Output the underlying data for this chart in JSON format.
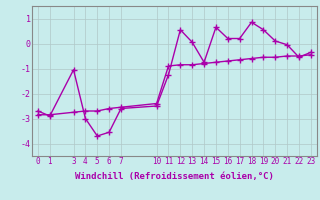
{
  "title": "",
  "xlabel": "Windchill (Refroidissement éolien,°C)",
  "ylabel": "",
  "background_color": "#c8ecec",
  "plot_bg_color": "#c8ecec",
  "line_color": "#aa00aa",
  "marker": "+",
  "linewidth": 1.0,
  "markersize": 4,
  "markeredgewidth": 1.0,
  "xlim": [
    -0.5,
    23.5
  ],
  "ylim": [
    -4.5,
    1.5
  ],
  "yticks": [
    -4,
    -3,
    -2,
    -1,
    0,
    1
  ],
  "xticks": [
    0,
    1,
    3,
    4,
    5,
    6,
    7,
    10,
    11,
    12,
    13,
    14,
    15,
    16,
    17,
    18,
    19,
    20,
    21,
    22,
    23
  ],
  "xtick_labels": [
    "0",
    "1",
    "3",
    "4",
    "5",
    "6",
    "7",
    "10",
    "11",
    "12",
    "13",
    "14",
    "15",
    "16",
    "17",
    "18",
    "19",
    "20",
    "21",
    "22",
    "23"
  ],
  "ytick_labels": [
    "-4",
    "-3",
    "-2",
    "-1",
    "0",
    "1"
  ],
  "grid_color": "#b0c8c8",
  "x_zigzag": [
    0,
    1,
    3,
    4,
    5,
    6,
    7,
    10,
    11,
    12,
    13,
    14,
    15,
    16,
    17,
    18,
    19,
    20,
    21,
    22,
    23
  ],
  "y_zigzag": [
    -2.7,
    -2.9,
    -1.05,
    -3.0,
    -3.7,
    -3.55,
    -2.6,
    -2.5,
    -1.25,
    0.55,
    0.05,
    -0.75,
    0.65,
    0.2,
    0.2,
    0.85,
    0.55,
    0.1,
    -0.05,
    -0.55,
    -0.35
  ],
  "x_straight": [
    0,
    1,
    3,
    4,
    5,
    6,
    7,
    10,
    11,
    12,
    13,
    14,
    15,
    16,
    17,
    18,
    19,
    20,
    21,
    22,
    23
  ],
  "y_straight": [
    -2.85,
    -2.85,
    -2.75,
    -2.7,
    -2.7,
    -2.6,
    -2.55,
    -2.4,
    -0.9,
    -0.85,
    -0.85,
    -0.8,
    -0.75,
    -0.7,
    -0.65,
    -0.6,
    -0.55,
    -0.55,
    -0.5,
    -0.5,
    -0.45
  ],
  "tick_fontsize": 5.5,
  "xlabel_fontsize": 6.5,
  "grid_linewidth": 0.5,
  "spine_color": "#888888"
}
